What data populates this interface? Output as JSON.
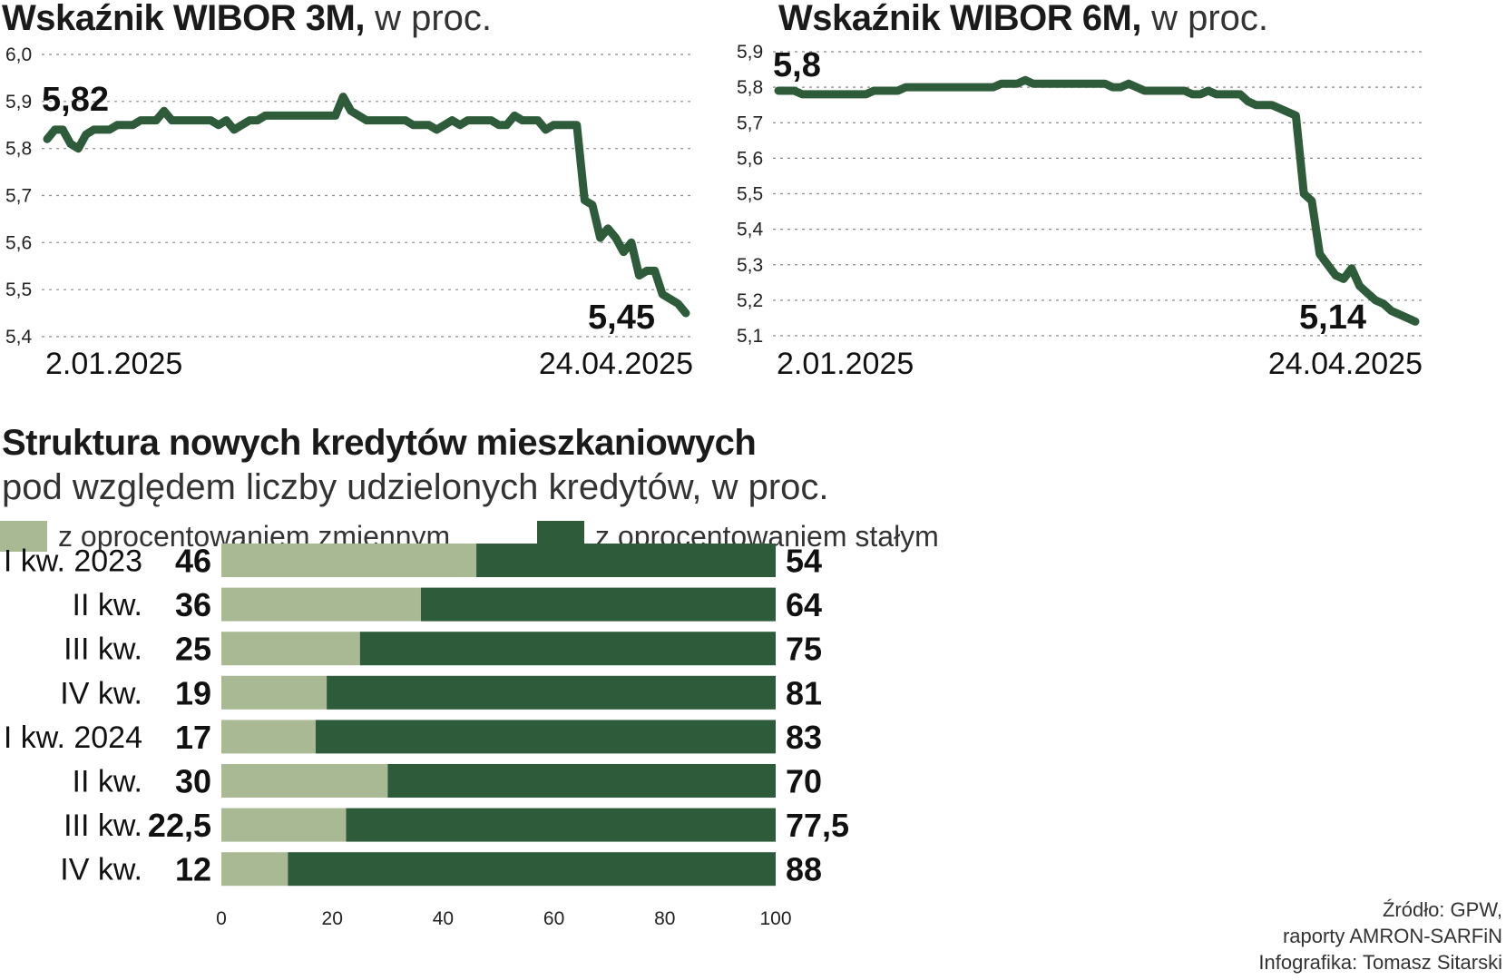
{
  "colors": {
    "line": "#2e5c3b",
    "bar_variable": "#a9b993",
    "bar_fixed": "#2e5c3b",
    "grid": "#8a8a8a"
  },
  "chart_data": [
    {
      "type": "line",
      "title": "Wskaźnik WIBOR 3M,",
      "subtitle": "w proc.",
      "ylim": [
        5.4,
        6.0
      ],
      "yticks": [
        "6,0",
        "5,9",
        "5,8",
        "5,7",
        "5,6",
        "5,5",
        "5,4"
      ],
      "x_start_label": "2.01.2025",
      "x_end_label": "24.04.2025",
      "start_value_label": "5,82",
      "end_value_label": "5,45",
      "grid": true,
      "values": [
        5.82,
        5.84,
        5.84,
        5.81,
        5.8,
        5.83,
        5.84,
        5.84,
        5.84,
        5.85,
        5.85,
        5.85,
        5.86,
        5.86,
        5.86,
        5.88,
        5.86,
        5.86,
        5.86,
        5.86,
        5.86,
        5.86,
        5.85,
        5.86,
        5.84,
        5.85,
        5.86,
        5.86,
        5.87,
        5.87,
        5.87,
        5.87,
        5.87,
        5.87,
        5.87,
        5.87,
        5.87,
        5.87,
        5.91,
        5.88,
        5.87,
        5.86,
        5.86,
        5.86,
        5.86,
        5.86,
        5.86,
        5.85,
        5.85,
        5.85,
        5.84,
        5.85,
        5.86,
        5.85,
        5.86,
        5.86,
        5.86,
        5.86,
        5.85,
        5.85,
        5.87,
        5.86,
        5.86,
        5.86,
        5.84,
        5.85,
        5.85,
        5.85,
        5.85,
        5.69,
        5.68,
        5.61,
        5.63,
        5.61,
        5.58,
        5.6,
        5.53,
        5.54,
        5.54,
        5.49,
        5.48,
        5.47,
        5.45
      ]
    },
    {
      "type": "line",
      "title": "Wskaźnik WIBOR 6M,",
      "subtitle": "w proc.",
      "ylim": [
        5.1,
        5.9
      ],
      "yticks": [
        "5,9",
        "5,8",
        "5,7",
        "5,6",
        "5,5",
        "5,4",
        "5,3",
        "5,2",
        "5,1"
      ],
      "x_start_label": "2.01.2025",
      "x_end_label": "24.04.2025",
      "start_value_label": "5,8",
      "end_value_label": "5,14",
      "grid": true,
      "values": [
        5.79,
        5.79,
        5.79,
        5.78,
        5.78,
        5.78,
        5.78,
        5.78,
        5.78,
        5.78,
        5.78,
        5.78,
        5.79,
        5.79,
        5.79,
        5.79,
        5.8,
        5.8,
        5.8,
        5.8,
        5.8,
        5.8,
        5.8,
        5.8,
        5.8,
        5.8,
        5.8,
        5.8,
        5.81,
        5.81,
        5.81,
        5.82,
        5.81,
        5.81,
        5.81,
        5.81,
        5.81,
        5.81,
        5.81,
        5.81,
        5.81,
        5.81,
        5.8,
        5.8,
        5.81,
        5.8,
        5.79,
        5.79,
        5.79,
        5.79,
        5.79,
        5.79,
        5.78,
        5.78,
        5.79,
        5.78,
        5.78,
        5.78,
        5.78,
        5.76,
        5.75,
        5.75,
        5.75,
        5.74,
        5.73,
        5.72,
        5.5,
        5.48,
        5.33,
        5.3,
        5.27,
        5.26,
        5.29,
        5.24,
        5.22,
        5.2,
        5.19,
        5.17,
        5.16,
        5.15,
        5.14
      ]
    },
    {
      "type": "bar",
      "title": "Struktura nowych kredytów mieszkaniowych",
      "subtitle": "pod względem liczby udzielonych kredytów, w proc.",
      "orientation": "horizontal",
      "stacked": true,
      "categories": [
        "I kw. 2023",
        "II kw.",
        "III kw.",
        "IV kw.",
        "I kw. 2024",
        "II kw.",
        "III kw.",
        "IV kw."
      ],
      "series": [
        {
          "name": "z oprocentowaniem zmiennym",
          "values": [
            46,
            36,
            25,
            19,
            17,
            30,
            22.5,
            12
          ],
          "labels": [
            "46",
            "36",
            "25",
            "19",
            "17",
            "30",
            "22,5",
            "12"
          ]
        },
        {
          "name": "z oprocentowaniem stałym",
          "values": [
            54,
            64,
            75,
            81,
            83,
            70,
            77.5,
            88
          ],
          "labels": [
            "54",
            "64",
            "75",
            "81",
            "83",
            "70",
            "77,5",
            "88"
          ]
        }
      ],
      "xlim": [
        0,
        100
      ],
      "xticks": [
        "0",
        "20",
        "40",
        "60",
        "80",
        "100"
      ],
      "legend": "top",
      "grid": false
    }
  ],
  "source": {
    "line1": "Źródło: GPW,",
    "line2": "raporty AMRON-SARFiN",
    "line3": "Infografika: Tomasz Sitarski"
  }
}
